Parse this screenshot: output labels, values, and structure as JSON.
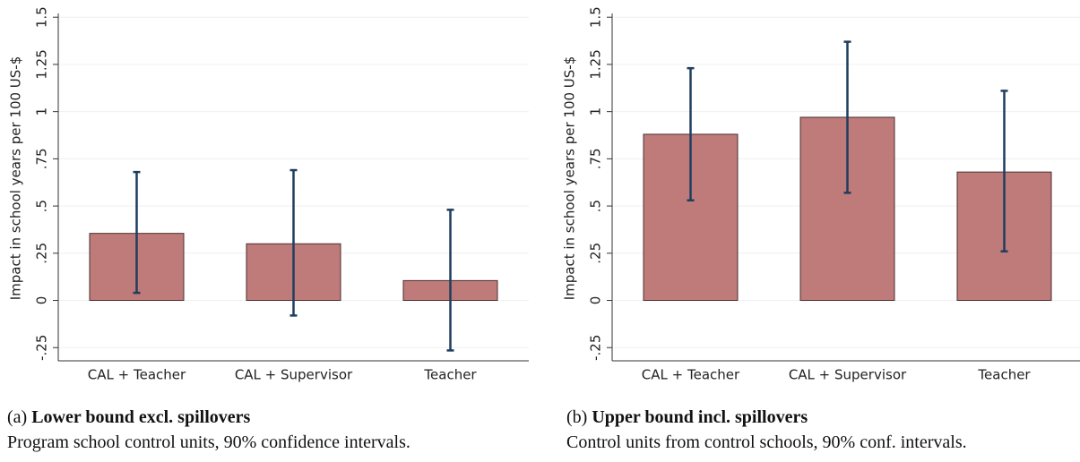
{
  "chart_data": [
    {
      "type": "bar",
      "caption_label": "(a)",
      "caption_title": "Lower bound excl. spillovers",
      "caption_note": "Program school control units, 90% confidence intervals.",
      "ylabel": "Impact in school years per 100 US-$",
      "categories": [
        "CAL + Teacher",
        "CAL + Supervisor",
        "Teacher"
      ],
      "values": [
        0.355,
        0.3,
        0.105
      ],
      "ci_low": [
        0.04,
        -0.08,
        -0.265
      ],
      "ci_high": [
        0.68,
        0.69,
        0.48
      ],
      "color": "#bf7a7a",
      "error_color": "#1f3e5e",
      "ylim": [
        -0.32,
        1.52
      ],
      "yticks": [
        {
          "value": -0.25,
          "label": "-.25"
        },
        0,
        {
          "value": 0.25,
          "label": ".25"
        },
        {
          "value": 0.5,
          "label": ".5"
        },
        {
          "value": 0.75,
          "label": ".75"
        },
        1,
        1.25,
        1.5
      ],
      "grid": true
    },
    {
      "type": "bar",
      "caption_label": "(b)",
      "caption_title": "Upper bound incl. spillovers",
      "caption_note": "Control units from control schools, 90% conf. intervals.",
      "ylabel": "Impact in school years per 100 US-$",
      "categories": [
        "CAL + Teacher",
        "CAL + Supervisor",
        "Teacher"
      ],
      "values": [
        0.88,
        0.97,
        0.68
      ],
      "ci_low": [
        0.53,
        0.57,
        0.26
      ],
      "ci_high": [
        1.23,
        1.37,
        1.11
      ],
      "color": "#bf7a7a",
      "error_color": "#1f3e5e",
      "ylim": [
        -0.32,
        1.52
      ],
      "yticks": [
        {
          "value": -0.25,
          "label": "-.25"
        },
        0,
        {
          "value": 0.25,
          "label": ".25"
        },
        {
          "value": 0.5,
          "label": ".5"
        },
        {
          "value": 0.75,
          "label": ".75"
        },
        1,
        1.25,
        1.5
      ],
      "grid": true
    }
  ]
}
